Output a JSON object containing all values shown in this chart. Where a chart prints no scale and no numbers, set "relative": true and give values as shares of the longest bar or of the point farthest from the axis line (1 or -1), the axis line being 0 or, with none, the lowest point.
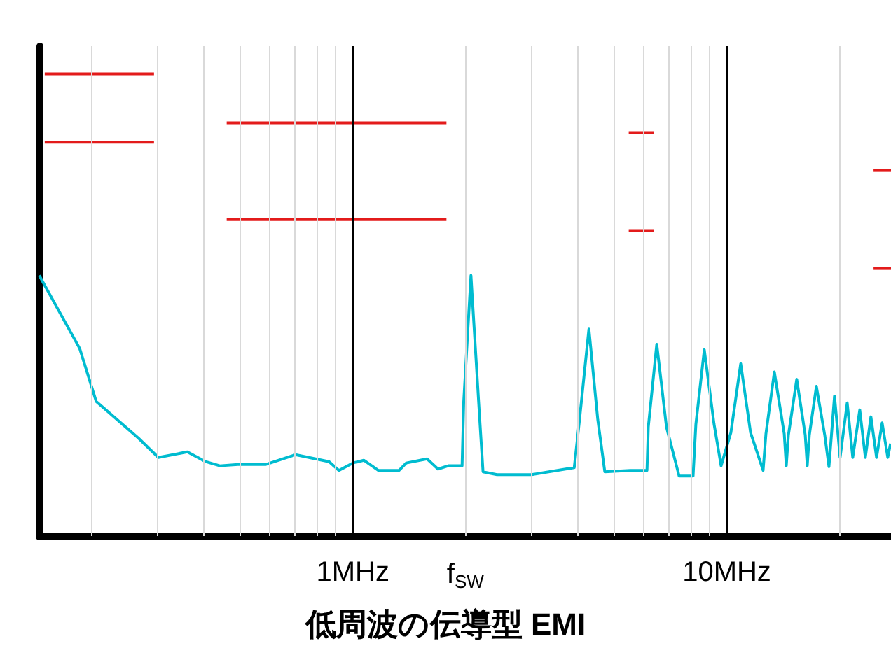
{
  "chart_data": {
    "type": "line",
    "title": "低周波の伝導型 EMI",
    "relative": true,
    "log": "x",
    "grid": "x",
    "marker": "none",
    "xlim": [
      0.145,
      27.5
    ],
    "xticks": [
      {
        "value": 0.2,
        "label": null
      },
      {
        "value": 0.3,
        "label": null
      },
      {
        "value": 0.4,
        "label": null
      },
      {
        "value": 0.5,
        "label": null
      },
      {
        "value": 0.6,
        "label": null
      },
      {
        "value": 0.7,
        "label": null
      },
      {
        "value": 0.8,
        "label": null
      },
      {
        "value": 0.9,
        "label": null
      },
      {
        "value": 1,
        "label": "1MHz"
      },
      {
        "value": 2,
        "label": "f$_{SW}$"
      },
      {
        "value": 3,
        "label": null
      },
      {
        "value": 4,
        "label": null
      },
      {
        "value": 5,
        "label": null
      },
      {
        "value": 6,
        "label": null
      },
      {
        "value": 7,
        "label": null
      },
      {
        "value": 8,
        "label": null
      },
      {
        "value": 9,
        "label": null
      },
      {
        "value": 10,
        "label": "10MHz"
      },
      {
        "value": 20,
        "label": null
      }
    ],
    "series": [
      {
        "color": "#00bcd0",
        "x": [
          0.145,
          0.186,
          0.206,
          0.267,
          0.302,
          0.361,
          0.404,
          0.441,
          0.493,
          0.586,
          0.702,
          0.864,
          0.918,
          1.0,
          1.07,
          1.17,
          1.33,
          1.39,
          1.58,
          1.69,
          1.8,
          1.96,
          1.98,
          2.07,
          2.17,
          2.23,
          2.43,
          3.01,
          3.91,
          4.04,
          4.28,
          4.52,
          4.72,
          5.52,
          6.12,
          6.17,
          6.5,
          6.9,
          7.46,
          8.13,
          8.27,
          8.71,
          9.25,
          9.66,
          10.26,
          10.9,
          11.58,
          12.51,
          12.73,
          13.41,
          14.25,
          14.43,
          14.62,
          15.39,
          16.22,
          16.42,
          16.63,
          17.37,
          18.29,
          18.77,
          19.42,
          20.1,
          21.0,
          21.73,
          22.69,
          23.48,
          24.3,
          25.16,
          26.04,
          26.96,
          27.42
        ],
        "values": [
          0.564,
          0.406,
          0.291,
          0.212,
          0.17,
          0.182,
          0.161,
          0.152,
          0.155,
          0.155,
          0.176,
          0.161,
          0.142,
          0.158,
          0.164,
          0.142,
          0.142,
          0.158,
          0.167,
          0.145,
          0.152,
          0.152,
          0.291,
          0.564,
          0.291,
          0.139,
          0.133,
          0.133,
          0.148,
          0.252,
          0.448,
          0.252,
          0.139,
          0.142,
          0.142,
          0.236,
          0.415,
          0.236,
          0.13,
          0.13,
          0.242,
          0.403,
          0.242,
          0.152,
          0.224,
          0.373,
          0.224,
          0.142,
          0.221,
          0.355,
          0.221,
          0.152,
          0.218,
          0.339,
          0.218,
          0.152,
          0.218,
          0.324,
          0.218,
          0.15,
          0.303,
          0.17,
          0.288,
          0.17,
          0.273,
          0.17,
          0.258,
          0.17,
          0.245,
          0.17,
          0.2
        ]
      },
      {
        "color": "#e31b1b",
        "x": [
          0.15,
          0.294
        ],
        "values": [
          1.0,
          1.0
        ]
      },
      {
        "color": "#e31b1b",
        "x": [
          0.15,
          0.294
        ],
        "values": [
          0.852,
          0.852
        ]
      },
      {
        "color": "#e31b1b",
        "x": [
          0.46,
          1.78
        ],
        "values": [
          0.894,
          0.894
        ]
      },
      {
        "color": "#e31b1b",
        "x": [
          0.46,
          1.78
        ],
        "values": [
          0.685,
          0.685
        ]
      },
      {
        "color": "#e31b1b",
        "x": [
          5.47,
          6.39
        ],
        "values": [
          0.873,
          0.873
        ]
      },
      {
        "color": "#e31b1b",
        "x": [
          5.47,
          6.39
        ],
        "values": [
          0.661,
          0.661
        ]
      },
      {
        "color": "#e31b1b",
        "x": [
          24.7,
          27.5
        ],
        "values": [
          0.791,
          0.791
        ]
      },
      {
        "color": "#e31b1b",
        "x": [
          24.7,
          27.5
        ],
        "values": [
          0.579,
          0.579
        ]
      }
    ]
  }
}
